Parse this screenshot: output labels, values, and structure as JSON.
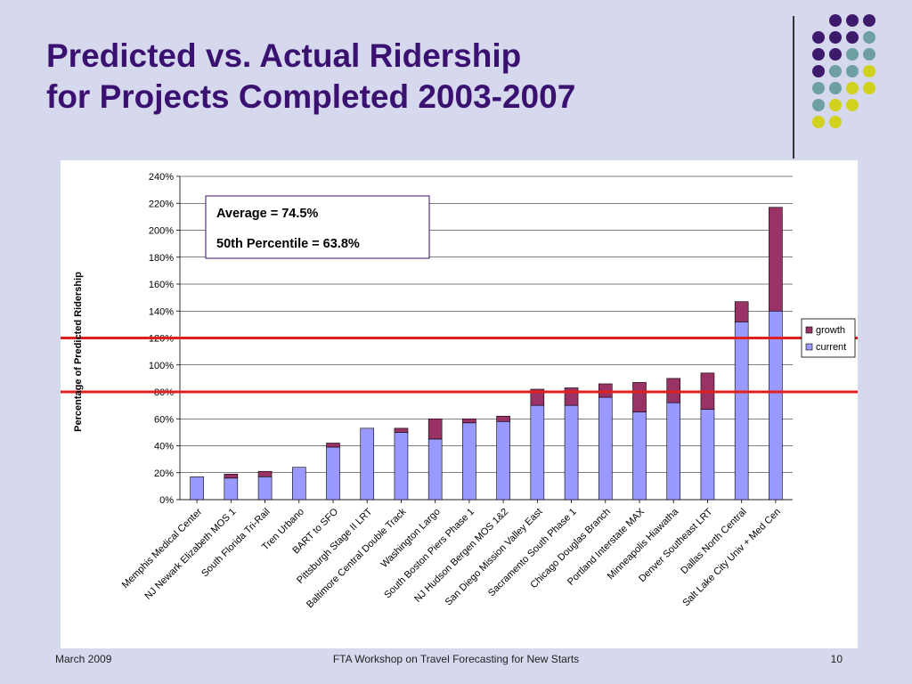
{
  "slide": {
    "title_line1": "Predicted vs. Actual Ridership",
    "title_line2": "for Projects Completed 2003-2007",
    "footer_left": "March 2009",
    "footer_center": "FTA Workshop on Travel Forecasting for New Starts",
    "footer_right": "10"
  },
  "colors": {
    "title": "#3a1170",
    "background": "#d6d8ee",
    "current": "#9999ff",
    "growth": "#993366",
    "reference_line": "#e0201e",
    "dot_purple": "#3d1a6b",
    "dot_teal": "#6e9fa2",
    "dot_yellow": "#d1d21e"
  },
  "chart_data": {
    "type": "bar",
    "stacked": true,
    "ylabel": "Percentage of Predicted Ridership",
    "xlabel": "",
    "ylim": [
      0,
      240
    ],
    "yticks": [
      "0%",
      "20%",
      "40%",
      "60%",
      "80%",
      "100%",
      "120%",
      "140%",
      "160%",
      "180%",
      "200%",
      "220%",
      "240%"
    ],
    "categories": [
      "Memphis Medical Center",
      "NJ Newark Elizabeth MOS 1",
      "South Florida Tri-Rail",
      "Tren Urbano",
      "BART to SFO",
      "Pittsburgh Stage II LRT",
      "Baltimore Central Double Track",
      "Washington Largo",
      "South Boston Piers Phase 1",
      "NJ Hudson Bergen MOS 1&2",
      "San Diego Mission Valley East",
      "Sacramento South Phase 1",
      "Chicago Douglas Branch",
      "Portland Interstate MAX",
      "Minneapolis Hiawatha",
      "Denver Southeast LRT",
      "Dallas North Central",
      "Salt Lake City Univ + Med Cen"
    ],
    "series": [
      {
        "name": "current",
        "values": [
          17,
          16,
          17,
          24,
          39,
          53,
          50,
          45,
          57,
          58,
          70,
          70,
          76,
          65,
          72,
          67,
          132,
          140
        ]
      },
      {
        "name": "growth",
        "values": [
          0,
          3,
          4,
          0,
          3,
          0,
          3,
          15,
          3,
          4,
          12,
          13,
          10,
          22,
          18,
          27,
          15,
          77
        ]
      }
    ],
    "legend_position": "right",
    "reference_lines": [
      80,
      120
    ],
    "annotations": [
      "Average = 74.5%",
      "50th Percentile = 63.8%"
    ],
    "grid": true
  }
}
